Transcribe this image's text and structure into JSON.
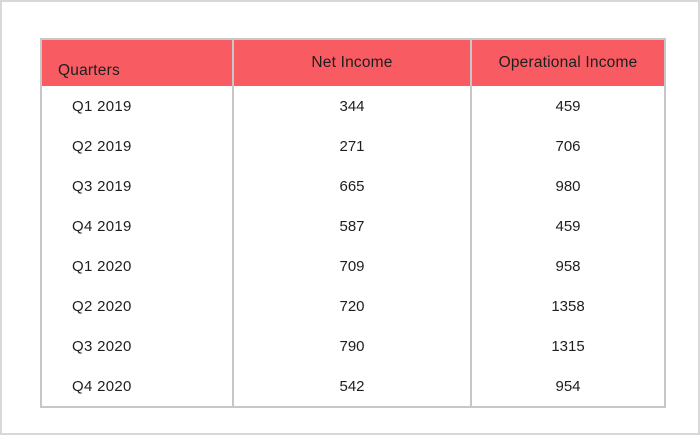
{
  "table": {
    "columns": [
      {
        "key": "quarters",
        "label": "Quarters"
      },
      {
        "key": "net_income",
        "label": "Net Income"
      },
      {
        "key": "operational_income",
        "label": "Operational Income"
      }
    ],
    "rows": [
      [
        "Q1 2019",
        "344",
        "459"
      ],
      [
        "Q2 2019",
        "271",
        "706"
      ],
      [
        "Q3 2019",
        "665",
        "980"
      ],
      [
        "Q4 2019",
        "587",
        "459"
      ],
      [
        "Q1 2020",
        "709",
        "958"
      ],
      [
        "Q2 2020",
        "720",
        "1358"
      ],
      [
        "Q3 2020",
        "790",
        "1315"
      ],
      [
        "Q4 2020",
        "542",
        "954"
      ]
    ]
  },
  "colors": {
    "header_bg": "#f85c62",
    "table_border": "#c7c7c7",
    "outer_frame_border": "#d8d8d8",
    "text": "#1e1e1e",
    "background": "#ffffff"
  },
  "chart_data": {
    "type": "table",
    "title": "",
    "columns": [
      "Quarters",
      "Net Income",
      "Operational Income"
    ],
    "categories": [
      "Q1 2019",
      "Q2 2019",
      "Q3 2019",
      "Q4 2019",
      "Q1 2020",
      "Q2 2020",
      "Q3 2020",
      "Q4 2020"
    ],
    "series": [
      {
        "name": "Net Income",
        "values": [
          344,
          271,
          665,
          587,
          709,
          720,
          790,
          542
        ]
      },
      {
        "name": "Operational Income",
        "values": [
          459,
          706,
          980,
          459,
          958,
          1358,
          1315,
          954
        ]
      }
    ]
  }
}
